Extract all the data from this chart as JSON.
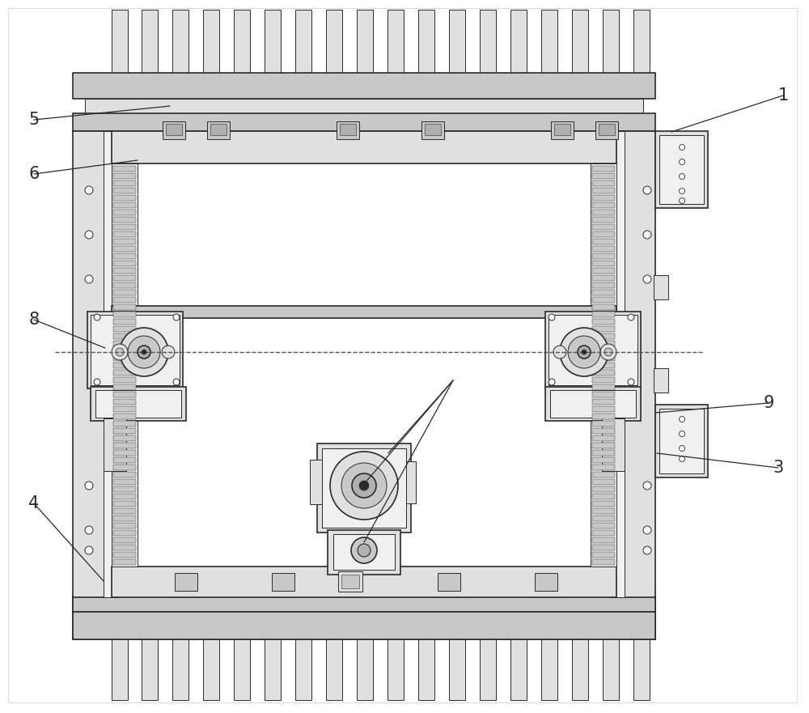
{
  "fig_w": 10.0,
  "fig_h": 8.81,
  "dpi": 100,
  "bg": "#ffffff",
  "lc": "#2a2a2a",
  "lc_light": "#888888",
  "fc_light": "#f0f0f0",
  "fc_mid": "#e0e0e0",
  "fc_dark": "#c8c8c8",
  "fc_darkest": "#b0b0b0",
  "lw1": 1.2,
  "lw2": 0.7,
  "lw3": 0.4,
  "labels": [
    [
      "1",
      968,
      118
    ],
    [
      "3",
      962,
      578
    ],
    [
      "4",
      42,
      622
    ],
    [
      "5",
      42,
      148
    ],
    [
      "6",
      42,
      215
    ],
    [
      "8",
      42,
      395
    ],
    [
      "9",
      950,
      498
    ]
  ],
  "label_fs": 15
}
